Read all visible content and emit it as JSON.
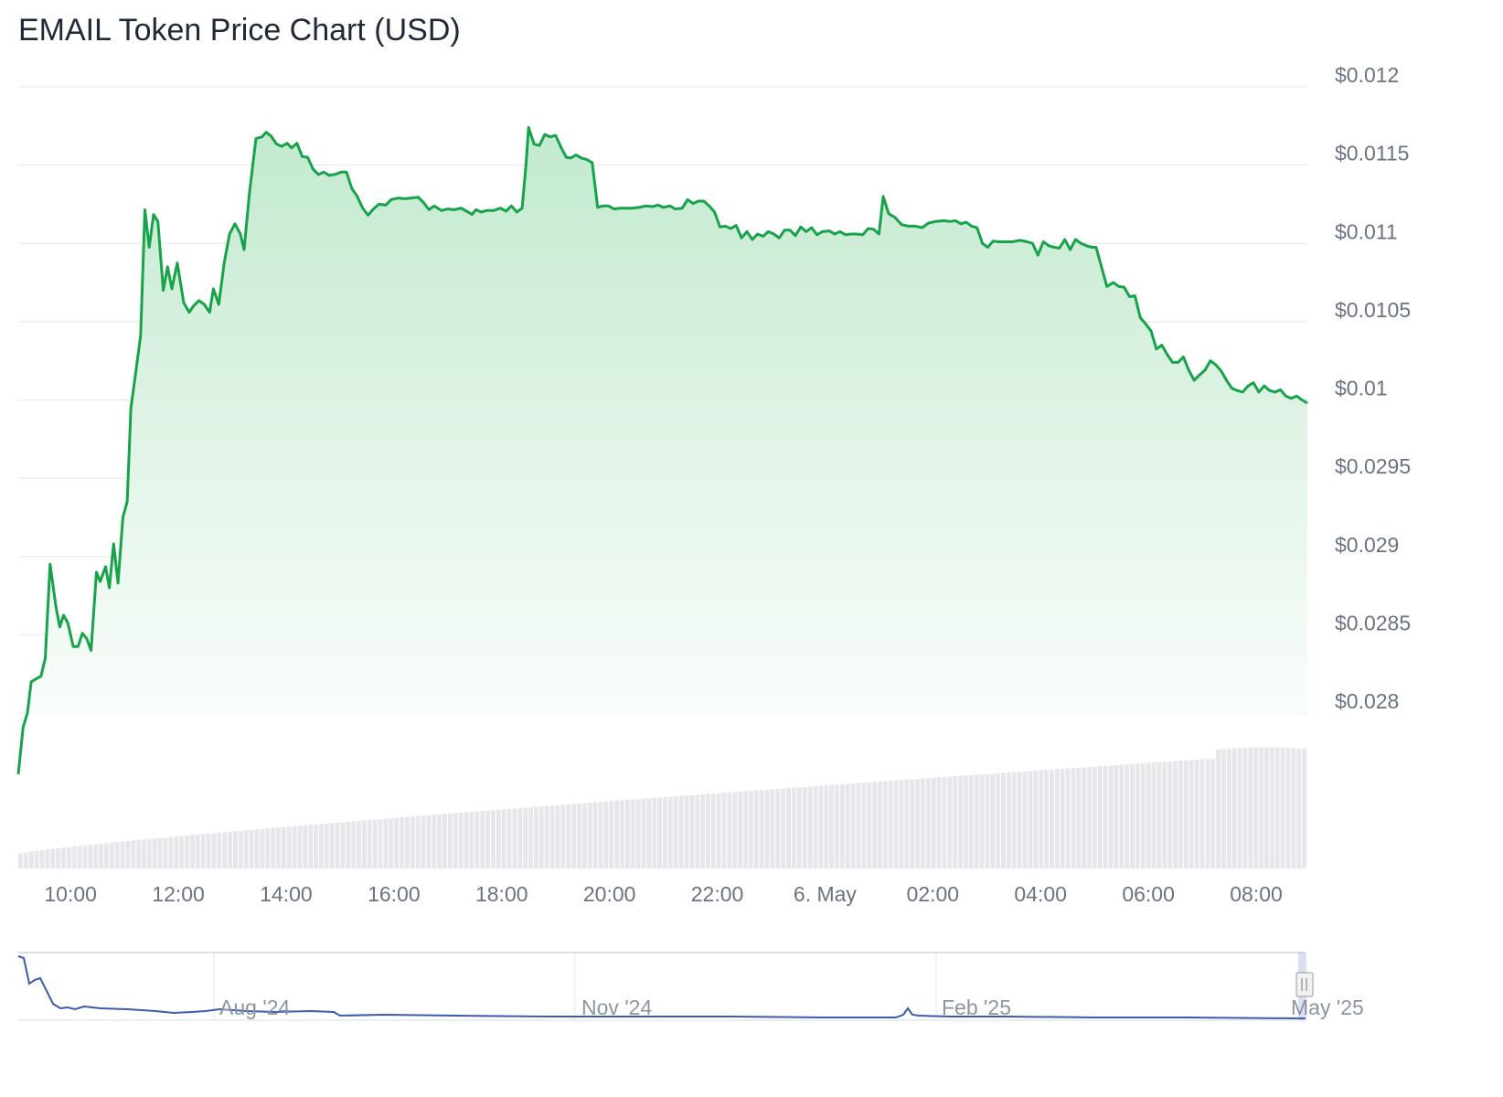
{
  "title": "EMAIL Token Price Chart (USD)",
  "colors": {
    "line": "#16a34a",
    "area_top": "#c6ebd2",
    "grid": "#e5e7eb",
    "volume": "#e5e7eb",
    "navigator_line": "#3b5bad",
    "label": "#6b7280"
  },
  "chart_data": {
    "type": "area",
    "title": "EMAIL Token Price Chart (USD)",
    "y_ticks": [
      "$0.012",
      "$0.0115",
      "$0.011",
      "$0.0105",
      "$0.01",
      "$0.0295",
      "$0.029",
      "$0.0285",
      "$0.028"
    ],
    "x_ticks": [
      {
        "label": "10:00",
        "t": 10
      },
      {
        "label": "12:00",
        "t": 12
      },
      {
        "label": "14:00",
        "t": 14
      },
      {
        "label": "16:00",
        "t": 16
      },
      {
        "label": "18:00",
        "t": 18
      },
      {
        "label": "20:00",
        "t": 20
      },
      {
        "label": "22:00",
        "t": 22
      },
      {
        "label": "6. May",
        "t": 24
      },
      {
        "label": "02:00",
        "t": 26
      },
      {
        "label": "04:00",
        "t": 28
      },
      {
        "label": "06:00",
        "t": 30
      },
      {
        "label": "08:00",
        "t": 32
      }
    ],
    "x_range": [
      9.03,
      32.95
    ],
    "y_ticks_index_range": [
      0,
      8
    ],
    "series": [
      {
        "values": [
          [
            9.03,
            8.78
          ],
          [
            9.12,
            8.18
          ],
          [
            9.2,
            8.0
          ],
          [
            9.27,
            7.6
          ],
          [
            9.37,
            7.56
          ],
          [
            9.45,
            7.53
          ],
          [
            9.53,
            7.3
          ],
          [
            9.62,
            6.1
          ],
          [
            9.73,
            6.65
          ],
          [
            9.8,
            6.9
          ],
          [
            9.87,
            6.75
          ],
          [
            9.95,
            6.85
          ],
          [
            10.05,
            7.15
          ],
          [
            10.14,
            7.15
          ],
          [
            10.22,
            6.98
          ],
          [
            10.3,
            7.05
          ],
          [
            10.38,
            7.2
          ],
          [
            10.48,
            6.2
          ],
          [
            10.55,
            6.32
          ],
          [
            10.65,
            6.13
          ],
          [
            10.72,
            6.4
          ],
          [
            10.8,
            5.84
          ],
          [
            10.88,
            6.34
          ],
          [
            10.97,
            5.5
          ],
          [
            11.05,
            5.3
          ],
          [
            11.12,
            4.1
          ],
          [
            11.2,
            3.7
          ],
          [
            11.3,
            3.18
          ],
          [
            11.38,
            1.57
          ],
          [
            11.46,
            2.05
          ],
          [
            11.54,
            1.63
          ],
          [
            11.62,
            1.72
          ],
          [
            11.72,
            2.6
          ],
          [
            11.8,
            2.3
          ],
          [
            11.88,
            2.58
          ],
          [
            11.98,
            2.25
          ],
          [
            12.1,
            2.76
          ],
          [
            12.2,
            2.88
          ],
          [
            12.28,
            2.8
          ],
          [
            12.38,
            2.73
          ],
          [
            12.48,
            2.78
          ],
          [
            12.58,
            2.88
          ],
          [
            12.65,
            2.58
          ],
          [
            12.75,
            2.78
          ],
          [
            12.85,
            2.25
          ],
          [
            12.95,
            1.88
          ],
          [
            13.05,
            1.75
          ],
          [
            13.15,
            1.88
          ],
          [
            13.22,
            2.08
          ],
          [
            13.32,
            1.35
          ],
          [
            13.44,
            0.66
          ],
          [
            13.55,
            0.64
          ],
          [
            13.63,
            0.58
          ],
          [
            13.72,
            0.63
          ],
          [
            13.82,
            0.73
          ],
          [
            13.92,
            0.76
          ],
          [
            14.02,
            0.72
          ],
          [
            14.1,
            0.78
          ],
          [
            14.2,
            0.72
          ],
          [
            14.3,
            0.89
          ],
          [
            14.4,
            0.9
          ],
          [
            14.5,
            1.05
          ],
          [
            14.6,
            1.12
          ],
          [
            14.7,
            1.09
          ],
          [
            14.8,
            1.13
          ],
          [
            14.9,
            1.12
          ],
          [
            15.02,
            1.09
          ],
          [
            15.12,
            1.09
          ],
          [
            15.22,
            1.3
          ],
          [
            15.32,
            1.4
          ],
          [
            15.42,
            1.55
          ],
          [
            15.52,
            1.64
          ],
          [
            15.62,
            1.56
          ],
          [
            15.72,
            1.5
          ],
          [
            15.85,
            1.51
          ],
          [
            15.95,
            1.44
          ],
          [
            16.08,
            1.42
          ],
          [
            16.2,
            1.43
          ],
          [
            16.32,
            1.42
          ],
          [
            16.45,
            1.41
          ],
          [
            16.55,
            1.48
          ],
          [
            16.65,
            1.57
          ],
          [
            16.75,
            1.52
          ],
          [
            16.88,
            1.58
          ],
          [
            17.0,
            1.56
          ],
          [
            17.12,
            1.57
          ],
          [
            17.25,
            1.55
          ],
          [
            17.35,
            1.59
          ],
          [
            17.45,
            1.63
          ],
          [
            17.52,
            1.57
          ],
          [
            17.62,
            1.6
          ],
          [
            17.72,
            1.58
          ],
          [
            17.85,
            1.58
          ],
          [
            17.98,
            1.55
          ],
          [
            18.08,
            1.59
          ],
          [
            18.18,
            1.52
          ],
          [
            18.28,
            1.6
          ],
          [
            18.38,
            1.55
          ],
          [
            18.45,
            1.0
          ],
          [
            18.5,
            0.52
          ],
          [
            18.6,
            0.73
          ],
          [
            18.7,
            0.75
          ],
          [
            18.8,
            0.61
          ],
          [
            18.9,
            0.64
          ],
          [
            19.0,
            0.62
          ],
          [
            19.12,
            0.8
          ],
          [
            19.2,
            0.9
          ],
          [
            19.28,
            0.91
          ],
          [
            19.38,
            0.87
          ],
          [
            19.48,
            0.91
          ],
          [
            19.58,
            0.93
          ],
          [
            19.68,
            0.97
          ],
          [
            19.78,
            1.54
          ],
          [
            19.88,
            1.52
          ],
          [
            19.98,
            1.52
          ],
          [
            20.08,
            1.56
          ],
          [
            20.2,
            1.55
          ],
          [
            20.32,
            1.55
          ],
          [
            20.42,
            1.55
          ],
          [
            20.55,
            1.54
          ],
          [
            20.68,
            1.52
          ],
          [
            20.8,
            1.53
          ],
          [
            20.9,
            1.51
          ],
          [
            21.0,
            1.54
          ],
          [
            21.12,
            1.52
          ],
          [
            21.22,
            1.56
          ],
          [
            21.35,
            1.55
          ],
          [
            21.45,
            1.44
          ],
          [
            21.55,
            1.49
          ],
          [
            21.65,
            1.46
          ],
          [
            21.75,
            1.46
          ],
          [
            21.85,
            1.52
          ],
          [
            21.95,
            1.6
          ],
          [
            22.05,
            1.79
          ],
          [
            22.15,
            1.78
          ],
          [
            22.25,
            1.81
          ],
          [
            22.35,
            1.77
          ],
          [
            22.45,
            1.93
          ],
          [
            22.55,
            1.85
          ],
          [
            22.65,
            1.95
          ],
          [
            22.75,
            1.88
          ],
          [
            22.85,
            1.91
          ],
          [
            22.95,
            1.85
          ],
          [
            23.05,
            1.88
          ],
          [
            23.15,
            1.93
          ],
          [
            23.25,
            1.83
          ],
          [
            23.35,
            1.83
          ],
          [
            23.45,
            1.9
          ],
          [
            23.55,
            1.79
          ],
          [
            23.65,
            1.85
          ],
          [
            23.75,
            1.8
          ],
          [
            23.85,
            1.89
          ],
          [
            23.95,
            1.85
          ],
          [
            24.08,
            1.84
          ],
          [
            24.18,
            1.88
          ],
          [
            24.28,
            1.85
          ],
          [
            24.38,
            1.89
          ],
          [
            24.48,
            1.88
          ],
          [
            24.58,
            1.88
          ],
          [
            24.7,
            1.89
          ],
          [
            24.8,
            1.81
          ],
          [
            24.9,
            1.82
          ],
          [
            25.0,
            1.88
          ],
          [
            25.08,
            1.4
          ],
          [
            25.18,
            1.62
          ],
          [
            25.3,
            1.67
          ],
          [
            25.42,
            1.76
          ],
          [
            25.55,
            1.78
          ],
          [
            25.68,
            1.78
          ],
          [
            25.8,
            1.8
          ],
          [
            25.92,
            1.74
          ],
          [
            26.05,
            1.72
          ],
          [
            26.2,
            1.71
          ],
          [
            26.32,
            1.72
          ],
          [
            26.42,
            1.71
          ],
          [
            26.52,
            1.75
          ],
          [
            26.62,
            1.73
          ],
          [
            26.72,
            1.78
          ],
          [
            26.82,
            1.8
          ],
          [
            26.92,
            2.0
          ],
          [
            27.02,
            2.05
          ],
          [
            27.12,
            1.97
          ],
          [
            27.22,
            1.98
          ],
          [
            27.38,
            1.98
          ],
          [
            27.48,
            1.98
          ],
          [
            27.62,
            1.96
          ],
          [
            27.75,
            1.98
          ],
          [
            27.85,
            2.0
          ],
          [
            27.95,
            2.15
          ],
          [
            28.05,
            1.98
          ],
          [
            28.15,
            2.03
          ],
          [
            28.25,
            2.05
          ],
          [
            28.35,
            2.06
          ],
          [
            28.45,
            1.95
          ],
          [
            28.55,
            2.08
          ],
          [
            28.65,
            1.95
          ],
          [
            28.75,
            2.0
          ],
          [
            28.85,
            2.03
          ],
          [
            28.95,
            2.05
          ],
          [
            29.03,
            2.05
          ],
          [
            29.13,
            2.3
          ],
          [
            29.23,
            2.55
          ],
          [
            29.35,
            2.5
          ],
          [
            29.45,
            2.55
          ],
          [
            29.55,
            2.56
          ],
          [
            29.65,
            2.68
          ],
          [
            29.75,
            2.67
          ],
          [
            29.85,
            2.95
          ],
          [
            29.95,
            3.03
          ],
          [
            30.05,
            3.12
          ],
          [
            30.15,
            3.35
          ],
          [
            30.25,
            3.3
          ],
          [
            30.35,
            3.42
          ],
          [
            30.45,
            3.52
          ],
          [
            30.55,
            3.52
          ],
          [
            30.65,
            3.45
          ],
          [
            30.75,
            3.62
          ],
          [
            30.85,
            3.75
          ],
          [
            30.95,
            3.68
          ],
          [
            31.05,
            3.62
          ],
          [
            31.15,
            3.5
          ],
          [
            31.25,
            3.55
          ],
          [
            31.35,
            3.63
          ],
          [
            31.45,
            3.75
          ],
          [
            31.55,
            3.85
          ],
          [
            31.65,
            3.88
          ],
          [
            31.75,
            3.9
          ],
          [
            31.85,
            3.82
          ],
          [
            31.95,
            3.78
          ],
          [
            32.05,
            3.9
          ],
          [
            32.15,
            3.82
          ],
          [
            32.25,
            3.88
          ],
          [
            32.35,
            3.9
          ],
          [
            32.45,
            3.87
          ],
          [
            32.55,
            3.95
          ],
          [
            32.65,
            3.98
          ],
          [
            32.75,
            3.95
          ],
          [
            32.85,
            4.0
          ],
          [
            32.95,
            4.04
          ]
        ]
      }
    ],
    "volume": {
      "start": 0.12,
      "end": 0.92,
      "peak_at": 0.96,
      "count": 240
    },
    "navigator": {
      "labels": [
        "Aug '24",
        "Nov '24",
        "Feb '25",
        "May '25"
      ]
    }
  }
}
